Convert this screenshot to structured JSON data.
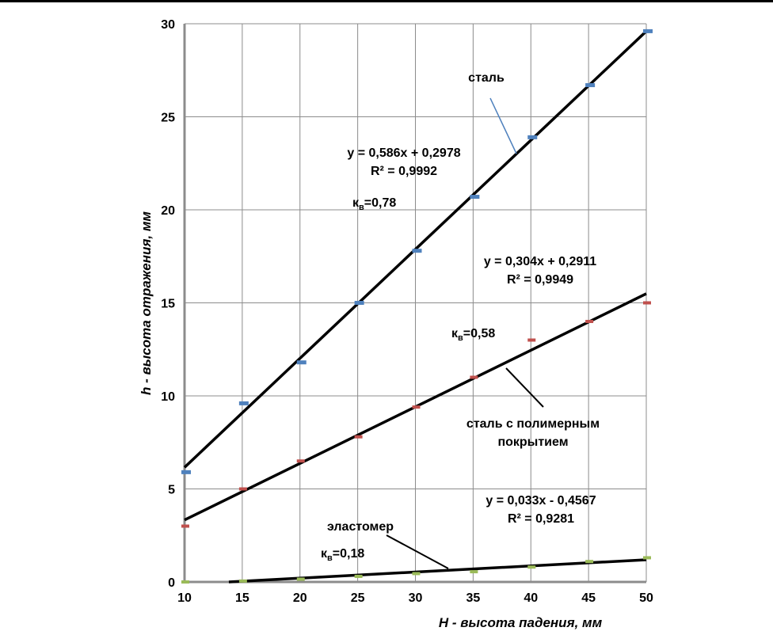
{
  "chart_data": {
    "type": "scatter",
    "xlabel": "H - высота падения, мм",
    "ylabel": "h - высота отражения, мм",
    "xlim": [
      10,
      50
    ],
    "ylim": [
      0,
      30
    ],
    "x_ticks": [
      "10",
      "15",
      "20",
      "25",
      "30",
      "35",
      "40",
      "45",
      "50"
    ],
    "y_ticks": [
      "0",
      "5",
      "10",
      "15",
      "20",
      "25",
      "30"
    ],
    "grid": true,
    "series": [
      {
        "name": "сталь",
        "color": "#4F81BD",
        "x": [
          10,
          15,
          20,
          25,
          30,
          35,
          40,
          45,
          50
        ],
        "y": [
          5.9,
          9.6,
          11.8,
          15.0,
          17.8,
          20.7,
          23.9,
          26.7,
          29.6
        ],
        "trendline": {
          "slope": 0.586,
          "intercept": 0.2978
        },
        "equation": "y = 0,586x + 0,2978",
        "r2": "R² = 0,9992",
        "coef": "0,78"
      },
      {
        "name": "сталь с полимерным покрытием",
        "name_lines": [
          "сталь с полимерным",
          "покрытием"
        ],
        "color": "#C0504D",
        "x": [
          10,
          15,
          20,
          25,
          30,
          35,
          40,
          45,
          50
        ],
        "y": [
          3.0,
          5.0,
          6.5,
          7.8,
          9.4,
          11.0,
          13.0,
          14.0,
          15.0
        ],
        "trendline": {
          "slope": 0.304,
          "intercept": 0.2911
        },
        "equation": "y = 0,304x + 0,2911",
        "r2": "R² = 0,9949",
        "coef": "0,58"
      },
      {
        "name": "эластомер",
        "color": "#9BBB59",
        "x": [
          10,
          15,
          20,
          25,
          30,
          35,
          40,
          45,
          50
        ],
        "y": [
          0.0,
          0.05,
          0.15,
          0.3,
          0.45,
          0.55,
          0.8,
          1.1,
          1.3
        ],
        "trendline": {
          "slope": 0.033,
          "intercept": -0.4567
        },
        "equation": "y = 0,033x - 0,4567",
        "r2": "R² = 0,9281",
        "coef": "0,18"
      }
    ],
    "coef_prefix": "к",
    "coef_sub": "в"
  }
}
